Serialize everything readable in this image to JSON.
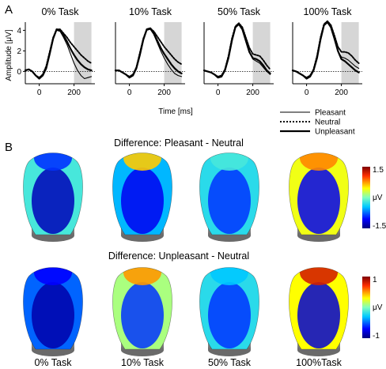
{
  "panels": {
    "a": "A",
    "b": "B"
  },
  "chart_data": [
    {
      "type": "line",
      "panel_titles": [
        "0% Task",
        "10% Task",
        "50% Task",
        "100% Task"
      ],
      "xlabel": "Time [ms]",
      "ylabel": "Amplitude [μV]",
      "xlim": [
        -80,
        320
      ],
      "ylim": [
        -1.2,
        4.8
      ],
      "xticks": [
        0,
        200
      ],
      "yticks": [
        0,
        2,
        4
      ],
      "shaded_interval": [
        200,
        300
      ],
      "zero_line": "dotted",
      "legend": {
        "position": "bottom-right",
        "entries": [
          "Pleasant",
          "Neutral",
          "Unpleasant"
        ]
      },
      "x": [
        -80,
        -60,
        -40,
        -20,
        0,
        20,
        40,
        60,
        80,
        100,
        120,
        140,
        160,
        180,
        200,
        220,
        240,
        260,
        280,
        300
      ],
      "panels": [
        {
          "series": [
            {
              "name": "Pleasant",
              "style": "thin",
              "values": [
                0.1,
                0.2,
                0.0,
                -0.4,
                -0.7,
                -0.4,
                0.3,
                1.6,
                3.1,
                4.0,
                3.9,
                3.3,
                2.6,
                1.7,
                0.8,
                0.1,
                -0.4,
                -0.7,
                -0.6,
                -0.5
              ]
            },
            {
              "name": "Neutral",
              "style": "dotted",
              "values": [
                0.1,
                0.2,
                0.0,
                -0.4,
                -0.6,
                -0.3,
                0.5,
                1.9,
                3.3,
                4.1,
                4.1,
                3.7,
                3.3,
                2.8,
                2.4,
                2.0,
                1.6,
                1.3,
                1.0,
                0.8
              ]
            },
            {
              "name": "Unpleasant",
              "style": "thick",
              "values": [
                0.1,
                0.2,
                0.0,
                -0.4,
                -0.7,
                -0.4,
                0.3,
                1.7,
                3.2,
                4.1,
                4.0,
                3.5,
                2.9,
                2.2,
                1.6,
                1.1,
                0.7,
                0.4,
                0.2,
                0.1
              ]
            }
          ]
        },
        {
          "series": [
            {
              "name": "Pleasant",
              "style": "thin",
              "values": [
                0.1,
                0.1,
                -0.1,
                -0.3,
                -0.6,
                -0.4,
                0.3,
                1.5,
                3.0,
                4.0,
                4.1,
                3.6,
                2.8,
                2.0,
                1.3,
                0.7,
                0.2,
                -0.2,
                -0.4,
                -0.5
              ]
            },
            {
              "name": "Neutral",
              "style": "dotted",
              "values": [
                0.1,
                0.1,
                -0.1,
                -0.3,
                -0.5,
                -0.3,
                0.4,
                1.8,
                3.2,
                4.1,
                4.2,
                3.9,
                3.4,
                2.9,
                2.4,
                2.0,
                1.6,
                1.2,
                0.9,
                0.7
              ]
            },
            {
              "name": "Unpleasant",
              "style": "thick",
              "values": [
                0.1,
                0.1,
                -0.1,
                -0.3,
                -0.6,
                -0.4,
                0.3,
                1.6,
                3.1,
                4.1,
                4.2,
                3.7,
                3.0,
                2.3,
                1.7,
                1.2,
                0.7,
                0.3,
                0.0,
                -0.2
              ]
            }
          ]
        },
        {
          "series": [
            {
              "name": "Pleasant",
              "style": "thin",
              "values": [
                0.1,
                0.0,
                -0.1,
                -0.3,
                -0.6,
                -0.5,
                0.1,
                1.3,
                3.0,
                4.3,
                4.6,
                4.1,
                3.0,
                1.9,
                1.2,
                1.0,
                0.8,
                0.4,
                0.0,
                -0.3
              ]
            },
            {
              "name": "Neutral",
              "style": "dotted",
              "values": [
                0.1,
                0.0,
                -0.1,
                -0.3,
                -0.5,
                -0.4,
                0.2,
                1.5,
                3.2,
                4.4,
                4.7,
                4.3,
                3.3,
                2.3,
                1.7,
                1.6,
                1.5,
                1.1,
                0.6,
                0.2
              ]
            },
            {
              "name": "Unpleasant",
              "style": "thick",
              "values": [
                0.1,
                0.0,
                -0.1,
                -0.3,
                -0.6,
                -0.5,
                0.1,
                1.3,
                3.0,
                4.3,
                4.6,
                4.1,
                3.0,
                1.9,
                1.3,
                1.2,
                1.0,
                0.6,
                0.1,
                -0.2
              ]
            }
          ]
        },
        {
          "series": [
            {
              "name": "Pleasant",
              "style": "thin",
              "values": [
                0.1,
                0.0,
                -0.2,
                -0.4,
                -0.7,
                -0.5,
                0.1,
                1.3,
                3.1,
                4.5,
                4.8,
                4.3,
                3.2,
                2.0,
                1.4,
                1.3,
                1.1,
                0.8,
                0.5,
                0.3
              ]
            },
            {
              "name": "Neutral",
              "style": "dotted",
              "values": [
                0.1,
                0.0,
                -0.2,
                -0.4,
                -0.6,
                -0.4,
                0.2,
                1.5,
                3.3,
                4.6,
                4.9,
                4.5,
                3.5,
                2.4,
                1.9,
                1.9,
                1.8,
                1.5,
                1.1,
                0.8
              ]
            },
            {
              "name": "Unpleasant",
              "style": "thick",
              "values": [
                0.1,
                0.0,
                -0.2,
                -0.4,
                -0.7,
                -0.5,
                0.1,
                1.3,
                3.1,
                4.5,
                4.8,
                4.3,
                3.2,
                2.0,
                1.2,
                1.0,
                0.7,
                0.4,
                0.1,
                -0.1
              ]
            }
          ]
        }
      ]
    },
    {
      "type": "heatmap",
      "title": "Difference: Pleasant - Neutral",
      "conditions": [
        "0% Task",
        "10% Task",
        "50% Task",
        "100% Task"
      ],
      "colorbar": {
        "min": -1.5,
        "max": 1.5,
        "ticks": [
          "1.5",
          "μV",
          "-1.5"
        ]
      },
      "values": [
        {
          "top": -0.9,
          "posterior": -1.3,
          "lateral": -0.2
        },
        {
          "top": 0.6,
          "posterior": -1.1,
          "lateral": -0.5
        },
        {
          "top": -0.2,
          "posterior": -0.9,
          "lateral": -0.3
        },
        {
          "top": 0.8,
          "posterior": -1.1,
          "lateral": 0.4
        }
      ]
    },
    {
      "type": "heatmap",
      "title": "Difference: Unpleasant - Neutral",
      "conditions": [
        "0% Task",
        "10% Task",
        "50% Task",
        "100% Task"
      ],
      "colorbar": {
        "min": -1,
        "max": 1,
        "ticks": [
          "1",
          "μV",
          "-1"
        ]
      },
      "values": [
        {
          "top": -0.7,
          "posterior": -0.9,
          "lateral": -0.5
        },
        {
          "top": 0.5,
          "posterior": -0.6,
          "lateral": 0.1
        },
        {
          "top": -0.3,
          "posterior": -0.6,
          "lateral": -0.2
        },
        {
          "top": 0.8,
          "posterior": -0.8,
          "lateral": 0.3
        }
      ]
    }
  ],
  "conditions_labels": [
    "0% Task",
    "10% Task",
    "50% Task",
    "100%Task"
  ]
}
